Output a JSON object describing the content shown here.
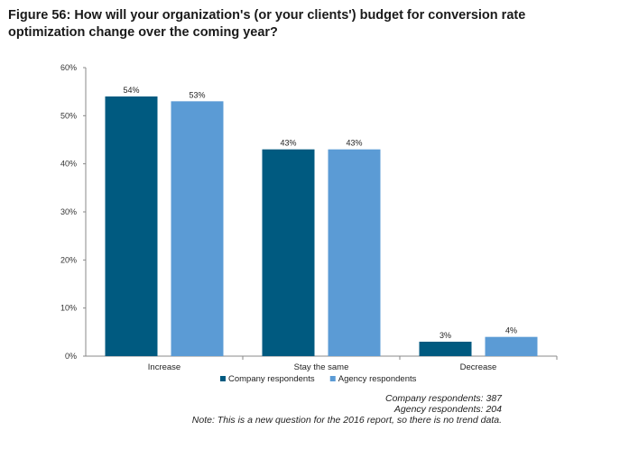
{
  "chart_data": {
    "type": "bar",
    "title": "Figure 56: How will your organization's (or your clients') budget for conversion rate optimization change over the coming year?",
    "categories": [
      "Increase",
      "Stay the same",
      "Decrease"
    ],
    "series": [
      {
        "name": "Company respondents",
        "values": [
          54,
          43,
          3
        ],
        "color": "#005a80"
      },
      {
        "name": "Agency respondents",
        "values": [
          53,
          43,
          4
        ],
        "color": "#5b9bd5"
      }
    ],
    "value_suffix": "%",
    "yticks": [
      "0%",
      "10%",
      "20%",
      "30%",
      "40%",
      "50%",
      "60%"
    ],
    "ylim": [
      0,
      60
    ],
    "grid": false,
    "legend_position": "bottom-center"
  },
  "notes": {
    "company_count": "Company respondents: 387",
    "agency_count": "Agency respondents: 204",
    "trend_note": "Note: This is a new question for the 2016 report, so there is no trend data."
  }
}
